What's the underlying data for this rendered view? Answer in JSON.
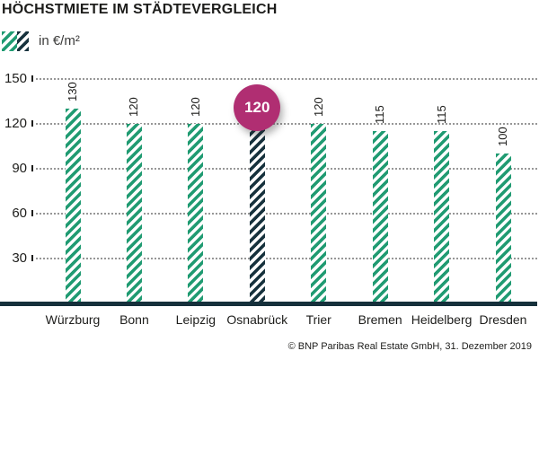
{
  "title": "HÖCHSTMIETE IM STÄDTEVERGLEICH",
  "legend": {
    "label": "in €/m²"
  },
  "source": "© BNP Paribas Real Estate GmbH, 31. Dezember 2019",
  "colors": {
    "bar_green": "#209b72",
    "bar_dark": "#17323d",
    "axis": "#15303b",
    "grid_dots": "#979797",
    "highlight_badge": "#b02e72",
    "text": "#1d1d1b"
  },
  "chart_data": {
    "type": "bar",
    "title": "HÖCHSTMIETE IM STÄDTEVERGLEICH",
    "unit_label": "in €/m²",
    "categories": [
      "Würzburg",
      "Bonn",
      "Leipzig",
      "Osnabrück",
      "Trier",
      "Bremen",
      "Heidelberg",
      "Dresden"
    ],
    "values": [
      130,
      120,
      120,
      120,
      120,
      115,
      115,
      100
    ],
    "yticks": [
      150,
      120,
      90,
      60,
      30
    ],
    "ylim": [
      0,
      150
    ],
    "grid": true,
    "legend_position": "top-left",
    "highlight": {
      "category": "Osnabrück",
      "index": 3,
      "value": 120,
      "badge_label": "120"
    }
  }
}
